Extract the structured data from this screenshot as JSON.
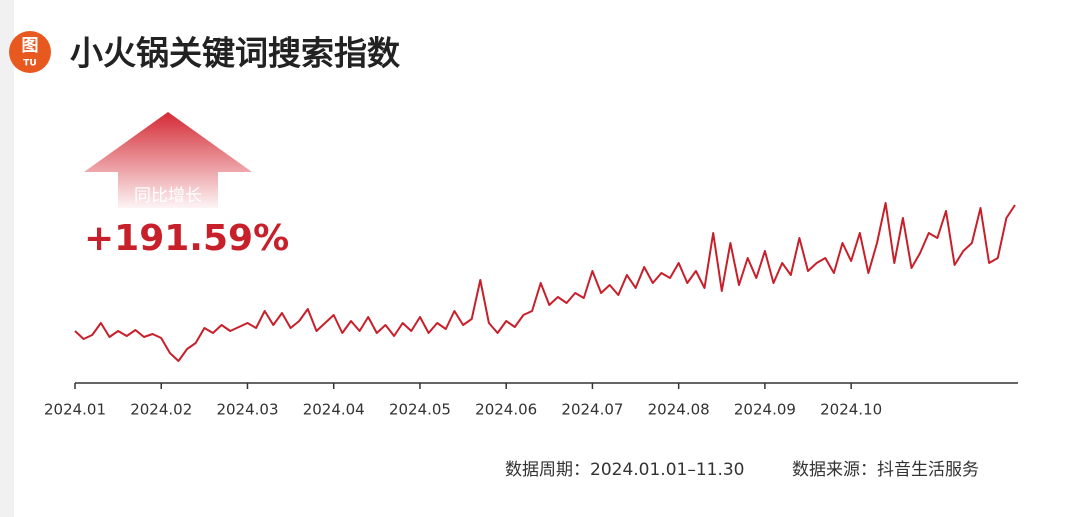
{
  "logo": {
    "main": "图",
    "sub": "TU"
  },
  "chart_data": {
    "type": "line",
    "title": "小火锅关键词搜索指数",
    "annotation": {
      "label": "同比增长",
      "value": "+191.59%"
    },
    "footnote": {
      "period": "数据周期：2024.01.01–11.30",
      "source": "数据来源：抖音生活服务"
    },
    "color": "#c8202b",
    "categories": [
      "2024.01",
      null,
      null,
      null,
      null,
      null,
      null,
      null,
      null,
      null,
      "2024.02",
      null,
      null,
      null,
      null,
      null,
      null,
      null,
      null,
      null,
      "2024.03",
      null,
      null,
      null,
      null,
      null,
      null,
      null,
      null,
      null,
      "2024.04",
      null,
      null,
      null,
      null,
      null,
      null,
      null,
      null,
      null,
      "2024.05",
      null,
      null,
      null,
      null,
      null,
      null,
      null,
      null,
      null,
      "2024.06",
      null,
      null,
      null,
      null,
      null,
      null,
      null,
      null,
      null,
      "2024.07",
      null,
      null,
      null,
      null,
      null,
      null,
      null,
      null,
      null,
      "2024.08",
      null,
      null,
      null,
      null,
      null,
      null,
      null,
      null,
      null,
      "2024.09",
      null,
      null,
      null,
      null,
      null,
      null,
      null,
      null,
      null,
      "2024.10",
      null,
      null,
      null,
      null,
      null,
      null,
      null,
      null,
      null,
      null,
      null,
      null,
      null,
      null,
      null,
      null,
      null,
      null,
      null
    ],
    "values": [
      52,
      44,
      48,
      60,
      46,
      52,
      47,
      53,
      46,
      49,
      45,
      30,
      22,
      34,
      40,
      55,
      50,
      58,
      52,
      56,
      60,
      55,
      72,
      58,
      70,
      55,
      62,
      74,
      52,
      60,
      68,
      50,
      62,
      52,
      66,
      50,
      58,
      47,
      60,
      52,
      66,
      50,
      60,
      54,
      72,
      58,
      64,
      103,
      60,
      50,
      62,
      56,
      68,
      72,
      100,
      78,
      86,
      80,
      90,
      85,
      112,
      90,
      98,
      88,
      108,
      95,
      116,
      100,
      110,
      105,
      120,
      100,
      112,
      95,
      150,
      92,
      140,
      98,
      125,
      105,
      132,
      100,
      120,
      108,
      145,
      112,
      120,
      125,
      110,
      140,
      122,
      150,
      110,
      140,
      180,
      120,
      165,
      115,
      130,
      150,
      145,
      172,
      118,
      132,
      140,
      175,
      120,
      125,
      165,
      178
    ]
  }
}
